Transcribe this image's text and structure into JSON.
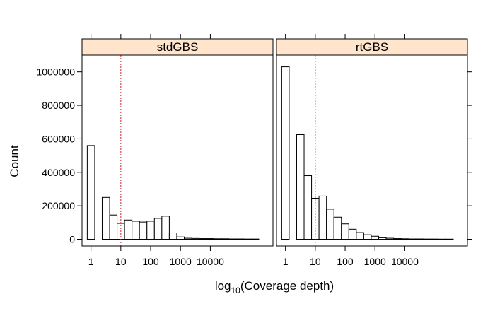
{
  "chart_data": {
    "type": "bar",
    "xlabel": "log10(Coverage depth)",
    "ylabel": "Count",
    "ylim": [
      -40000,
      1100000
    ],
    "xlim_log10": [
      -0.3,
      6.1
    ],
    "x_scale": "log10",
    "bin_width_log10": 0.25,
    "reference_line": {
      "x": 10,
      "color": "#d62728",
      "style": "dotted"
    },
    "strip_color": "#ffe5cc",
    "x_ticks": [
      {
        "value": 1,
        "label": "1"
      },
      {
        "value": 10,
        "label": "10"
      },
      {
        "value": 100,
        "label": "100"
      },
      {
        "value": 1000,
        "label": "1000"
      },
      {
        "value": 10000,
        "label": "10000"
      }
    ],
    "y_ticks": [
      {
        "value": 0,
        "label": "0"
      },
      {
        "value": 200000,
        "label": "200000"
      },
      {
        "value": 400000,
        "label": "400000"
      },
      {
        "value": 600000,
        "label": "600000"
      },
      {
        "value": 800000,
        "label": "800000"
      },
      {
        "value": 1000000,
        "label": "1000000"
      }
    ],
    "panels": [
      {
        "name": "stdGBS",
        "bins": [
          {
            "x": 0,
            "count": 560000
          },
          {
            "x": 0.25,
            "count": 0
          },
          {
            "x": 0.5,
            "count": 250000
          },
          {
            "x": 0.75,
            "count": 145000
          },
          {
            "x": 1.0,
            "count": 95000
          },
          {
            "x": 1.25,
            "count": 115000
          },
          {
            "x": 1.5,
            "count": 108000
          },
          {
            "x": 1.75,
            "count": 103000
          },
          {
            "x": 2.0,
            "count": 108000
          },
          {
            "x": 2.25,
            "count": 125000
          },
          {
            "x": 2.5,
            "count": 138000
          },
          {
            "x": 2.75,
            "count": 38000
          },
          {
            "x": 3.0,
            "count": 14000
          },
          {
            "x": 3.25,
            "count": 6000
          },
          {
            "x": 3.5,
            "count": 5000
          },
          {
            "x": 3.75,
            "count": 4000
          },
          {
            "x": 4.0,
            "count": 4000
          },
          {
            "x": 4.25,
            "count": 3000
          },
          {
            "x": 4.5,
            "count": 3000
          },
          {
            "x": 4.75,
            "count": 2000
          },
          {
            "x": 5.0,
            "count": 2000
          },
          {
            "x": 5.25,
            "count": 1500
          },
          {
            "x": 5.5,
            "count": 1500
          }
        ]
      },
      {
        "name": "rtGBS",
        "bins": [
          {
            "x": 0,
            "count": 1030000
          },
          {
            "x": 0.25,
            "count": 0
          },
          {
            "x": 0.5,
            "count": 625000
          },
          {
            "x": 0.75,
            "count": 380000
          },
          {
            "x": 1.0,
            "count": 245000
          },
          {
            "x": 1.25,
            "count": 258000
          },
          {
            "x": 1.5,
            "count": 180000
          },
          {
            "x": 1.75,
            "count": 132000
          },
          {
            "x": 2.0,
            "count": 92000
          },
          {
            "x": 2.25,
            "count": 60000
          },
          {
            "x": 2.5,
            "count": 40000
          },
          {
            "x": 2.75,
            "count": 27000
          },
          {
            "x": 3.0,
            "count": 18000
          },
          {
            "x": 3.25,
            "count": 9000
          },
          {
            "x": 3.5,
            "count": 6000
          },
          {
            "x": 3.75,
            "count": 4000
          },
          {
            "x": 4.0,
            "count": 3000
          },
          {
            "x": 4.25,
            "count": 2000
          },
          {
            "x": 4.5,
            "count": 2000
          },
          {
            "x": 4.75,
            "count": 1500
          },
          {
            "x": 5.0,
            "count": 1500
          },
          {
            "x": 5.25,
            "count": 1000
          },
          {
            "x": 5.5,
            "count": 1000
          }
        ]
      }
    ]
  }
}
